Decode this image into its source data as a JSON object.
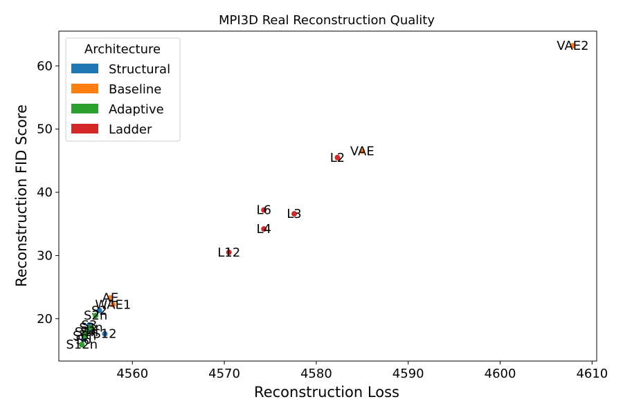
{
  "chart_data": {
    "type": "scatter",
    "title": "MPI3D Real Reconstruction Quality",
    "xlabel": "Reconstruction Loss",
    "ylabel": "Reconstruction FID Score",
    "xlim": [
      4552,
      4610.5
    ],
    "ylim": [
      13.3,
      65.5
    ],
    "xticks": [
      4560,
      4570,
      4580,
      4590,
      4600,
      4610
    ],
    "yticks": [
      20,
      30,
      40,
      50,
      60
    ],
    "grid": false,
    "legend": {
      "title": "Architecture",
      "placement": "top-left",
      "entries": [
        "Structural",
        "Baseline",
        "Adaptive",
        "Ladder"
      ]
    },
    "series": [
      {
        "name": "Structural",
        "color": "#1f77b4",
        "points": [
          {
            "label": "S12",
            "x": 4557.0,
            "y": 17.6
          },
          {
            "label": "S3",
            "x": 4555.3,
            "y": 19.0
          },
          {
            "label": "S4",
            "x": 4555.2,
            "y": 18.0
          },
          {
            "label": "S6",
            "x": 4554.7,
            "y": 16.7
          },
          {
            "label": "S2",
            "x": 4556.4,
            "y": 21.3
          }
        ]
      },
      {
        "name": "Baseline",
        "color": "#ff7f0e",
        "points": [
          {
            "label": "VAE2",
            "x": 4607.9,
            "y": 63.2
          },
          {
            "label": "VAE",
            "x": 4585.0,
            "y": 46.5
          },
          {
            "label": "AE",
            "x": 4557.6,
            "y": 23.3
          },
          {
            "label": "WAE1",
            "x": 4557.9,
            "y": 22.2
          }
        ]
      },
      {
        "name": "Adaptive",
        "color": "#2ca02c",
        "points": [
          {
            "label": "S2n",
            "x": 4556.0,
            "y": 20.5
          },
          {
            "label": "S3n",
            "x": 4555.5,
            "y": 18.6
          },
          {
            "label": "S4n",
            "x": 4555.0,
            "y": 17.9
          },
          {
            "label": "S6n",
            "x": 4554.8,
            "y": 17.3
          },
          {
            "label": "S12n",
            "x": 4554.5,
            "y": 15.9
          }
        ]
      },
      {
        "name": "Ladder",
        "color": "#d62728",
        "points": [
          {
            "label": "L2",
            "x": 4582.3,
            "y": 45.5
          },
          {
            "label": "L6",
            "x": 4574.3,
            "y": 37.2
          },
          {
            "label": "L3",
            "x": 4577.6,
            "y": 36.6
          },
          {
            "label": "L4",
            "x": 4574.3,
            "y": 34.2
          },
          {
            "label": "L12",
            "x": 4570.5,
            "y": 30.5
          }
        ]
      }
    ]
  }
}
